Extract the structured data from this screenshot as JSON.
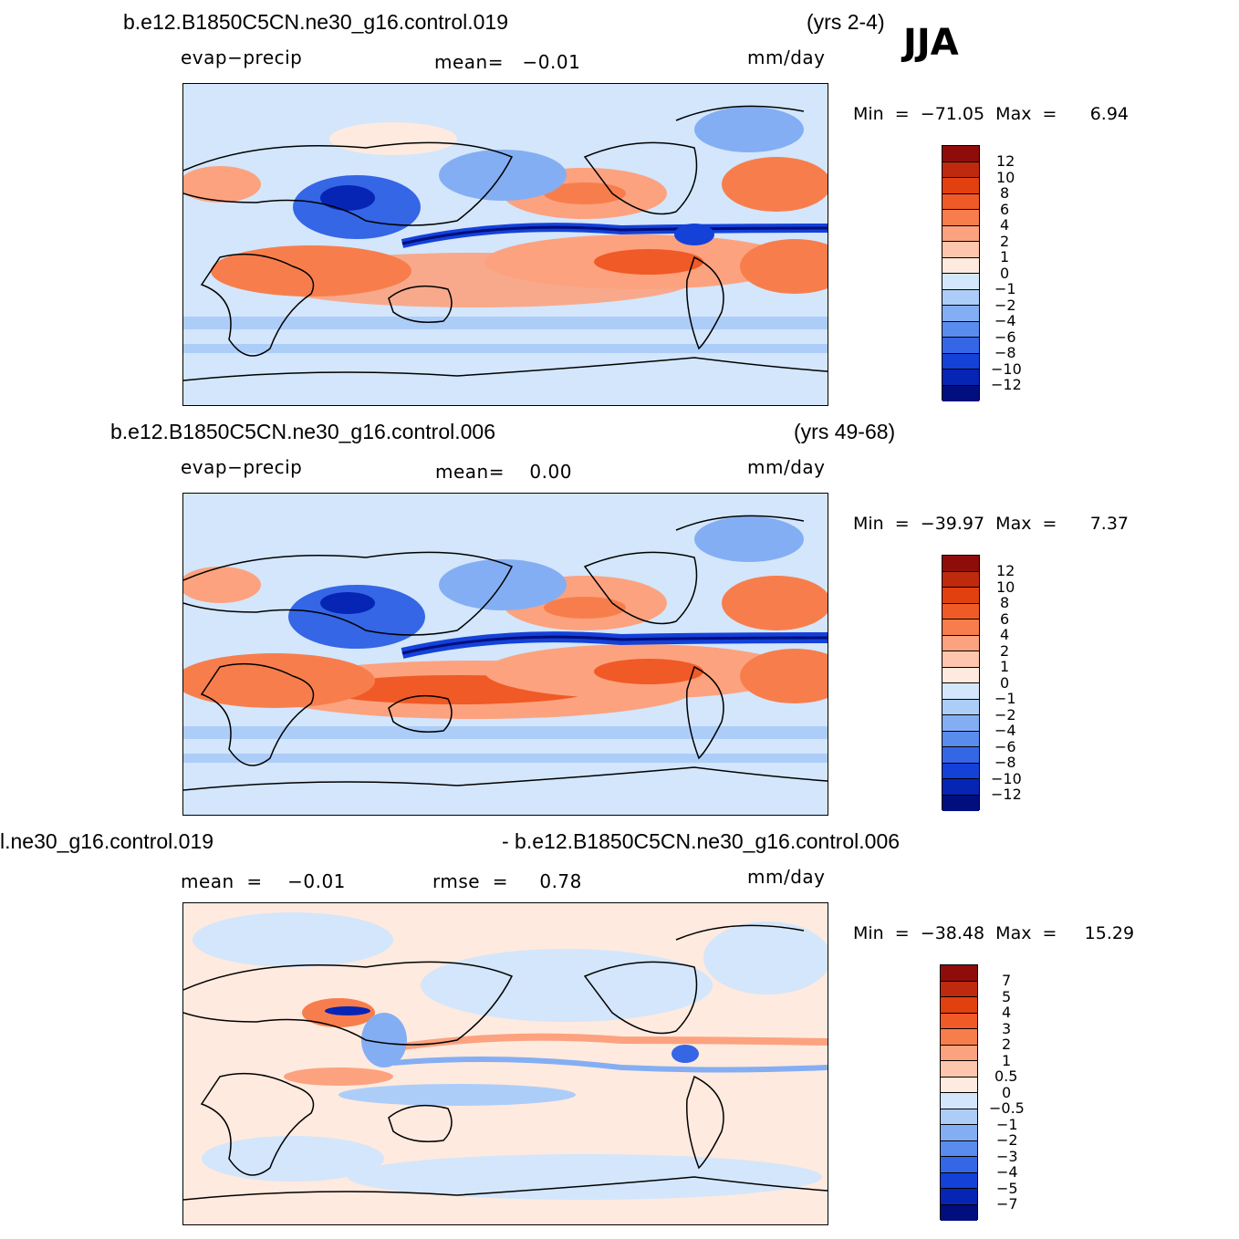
{
  "season": "JJA",
  "panels": [
    {
      "case": "b.e12.B1850C5CN.ne30_g16.control.019",
      "years": "(yrs 2-4)",
      "variable": "evap−precip",
      "stat1": "mean=   −0.01",
      "stat2": "",
      "units": "mm/day",
      "minmax": "Min  =  −71.05  Max  =      6.94",
      "levels": [
        "12",
        "10",
        "8",
        "6",
        "4",
        "2",
        "1",
        "0",
        "−1",
        "−2",
        "−4",
        "−6",
        "−8",
        "−10",
        "−12"
      ]
    },
    {
      "case": "b.e12.B1850C5CN.ne30_g16.control.006",
      "years": "(yrs 49-68)",
      "variable": "evap−precip",
      "stat1": "mean=    0.00",
      "stat2": "",
      "units": "mm/day",
      "minmax": "Min  =  −39.97  Max  =      7.37",
      "levels": [
        "12",
        "10",
        "8",
        "6",
        "4",
        "2",
        "1",
        "0",
        "−1",
        "−2",
        "−4",
        "−6",
        "−8",
        "−10",
        "−12"
      ]
    },
    {
      "case": "l.ne30_g16.control.019",
      "years": "- b.e12.B1850C5CN.ne30_g16.control.006",
      "variable": "",
      "stat1": "mean  =    −0.01",
      "stat2": "rmse  =     0.78",
      "units": "mm/day",
      "minmax": "Min  =  −38.48  Max  =     15.29",
      "levels": [
        "7",
        "5",
        "4",
        "3",
        "2",
        "1",
        "0.5",
        "0",
        "−0.5",
        "−1",
        "−2",
        "−3",
        "−4",
        "−5",
        "−7"
      ]
    }
  ],
  "colors": {
    "scale": [
      "#8e0d0b",
      "#bf2a0f",
      "#e2400e",
      "#f05a26",
      "#f77e4c",
      "#fca27f",
      "#fec6ac",
      "#feeadf",
      "#d3e6fb",
      "#adcdf9",
      "#84aef3",
      "#5a8cee",
      "#3466e6",
      "#1441d8",
      "#0625b4",
      "#000e7e"
    ]
  }
}
